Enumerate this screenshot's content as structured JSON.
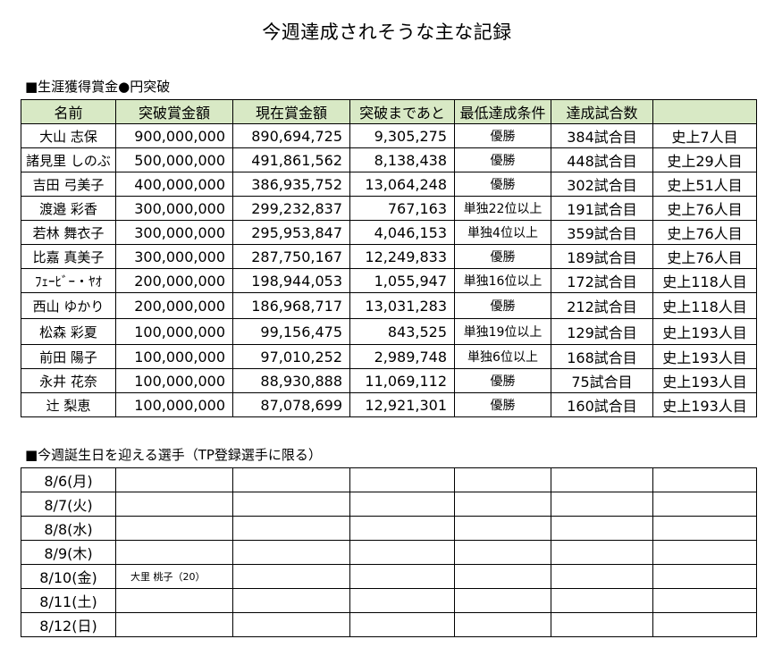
{
  "title": "今週達成されそうな主な記録",
  "records_section": {
    "heading": "■生涯獲得賞金●円突破",
    "columns": [
      "名前",
      "突破賞金額",
      "現在賞金額",
      "突破まであと",
      "最低達成条件",
      "達成試合数",
      ""
    ],
    "rows": [
      {
        "name": "大山 志保",
        "threshold": "900,000,000",
        "current": "890,694,725",
        "remaining": "9,305,275",
        "condition": "優勝",
        "games": "384試合目",
        "rank": "史上7人目"
      },
      {
        "name": "諸見里 しのぶ",
        "threshold": "500,000,000",
        "current": "491,861,562",
        "remaining": "8,138,438",
        "condition": "優勝",
        "games": "448試合目",
        "rank": "史上29人目"
      },
      {
        "name": "吉田 弓美子",
        "threshold": "400,000,000",
        "current": "386,935,752",
        "remaining": "13,064,248",
        "condition": "優勝",
        "games": "302試合目",
        "rank": "史上51人目"
      },
      {
        "name": "渡邉 彩香",
        "threshold": "300,000,000",
        "current": "299,232,837",
        "remaining": "767,163",
        "condition": "単独22位以上",
        "games": "191試合目",
        "rank": "史上76人目"
      },
      {
        "name": "若林 舞衣子",
        "threshold": "300,000,000",
        "current": "295,953,847",
        "remaining": "4,046,153",
        "condition": "単独4位以上",
        "games": "359試合目",
        "rank": "史上76人目"
      },
      {
        "name": "比嘉 真美子",
        "threshold": "300,000,000",
        "current": "287,750,167",
        "remaining": "12,249,833",
        "condition": "優勝",
        "games": "189試合目",
        "rank": "史上76人目"
      },
      {
        "name": "ﾌｪｰﾋﾞｰ・ﾔｵ",
        "threshold": "200,000,000",
        "current": "198,944,053",
        "remaining": "1,055,947",
        "condition": "単独16位以上",
        "games": "172試合目",
        "rank": "史上118人目"
      },
      {
        "name": "西山 ゆかり",
        "threshold": "200,000,000",
        "current": "186,968,717",
        "remaining": "13,031,283",
        "condition": "優勝",
        "games": "212試合目",
        "rank": "史上118人目"
      },
      {
        "name": "松森 彩夏",
        "threshold": "100,000,000",
        "current": "99,156,475",
        "remaining": "843,525",
        "condition": "単独19位以上",
        "games": "129試合目",
        "rank": "史上193人目"
      },
      {
        "name": "前田 陽子",
        "threshold": "100,000,000",
        "current": "97,010,252",
        "remaining": "2,989,748",
        "condition": "単独6位以上",
        "games": "168試合目",
        "rank": "史上193人目"
      },
      {
        "name": "永井 花奈",
        "threshold": "100,000,000",
        "current": "88,930,888",
        "remaining": "11,069,112",
        "condition": "優勝",
        "games": "75試合目",
        "rank": "史上193人目"
      },
      {
        "name": "辻 梨恵",
        "threshold": "100,000,000",
        "current": "87,078,699",
        "remaining": "12,921,301",
        "condition": "優勝",
        "games": "160試合目",
        "rank": "史上193人目"
      }
    ]
  },
  "birthday_section": {
    "heading": "■今週誕生日を迎える選手（TP登録選手に限る）",
    "rows": [
      {
        "date": "8/6(月)",
        "player": ""
      },
      {
        "date": "8/7(火)",
        "player": ""
      },
      {
        "date": "8/8(水)",
        "player": ""
      },
      {
        "date": "8/9(木)",
        "player": ""
      },
      {
        "date": "8/10(金)",
        "player": "大里 桃子（20）"
      },
      {
        "date": "8/11(土)",
        "player": ""
      },
      {
        "date": "8/12(日)",
        "player": ""
      }
    ]
  },
  "colors": {
    "header_fill": "#d8e9c5",
    "border": "#000000"
  }
}
